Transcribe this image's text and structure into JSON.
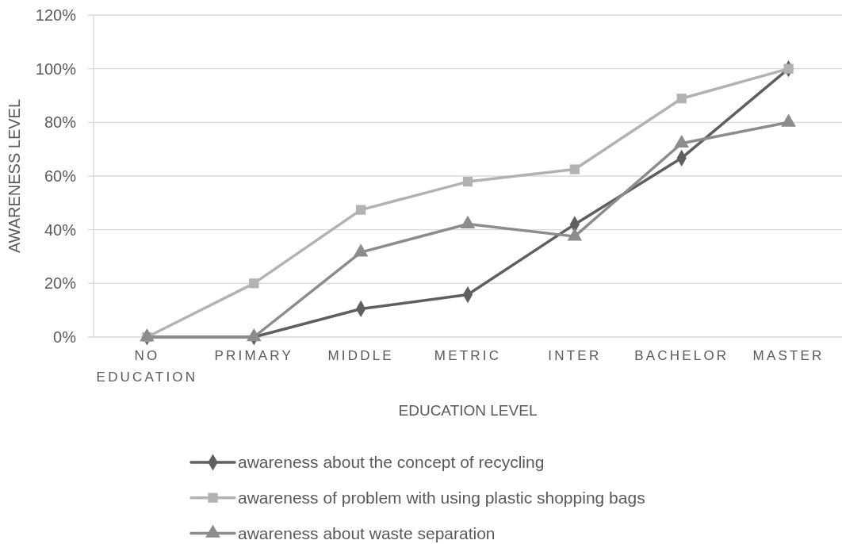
{
  "chart_data": {
    "type": "line",
    "xlabel": "EDUCATION LEVEL",
    "ylabel": "AWARENESS LEVEL",
    "categories": [
      "NO EDUCATION",
      "PRIMARY",
      "MIDDLE",
      "METRIC",
      "INTER",
      "BACHELOR",
      "MASTER"
    ],
    "series": [
      {
        "name": "awareness about the concept of recycling",
        "color": "#5f5f5f",
        "marker": "diamond",
        "values": [
          0,
          0,
          10.5,
          15.8,
          42,
          66.7,
          100
        ]
      },
      {
        "name": "awareness of problem with using plastic shopping bags",
        "color": "#b2b2b2",
        "marker": "square",
        "values": [
          0,
          20,
          47.4,
          57.9,
          62.5,
          88.9,
          100
        ]
      },
      {
        "name": "awareness about waste separation",
        "color": "#8c8c8c",
        "marker": "triangle",
        "values": [
          0,
          0,
          31.6,
          42.1,
          37.5,
          72.2,
          80
        ]
      }
    ],
    "ylim": [
      0,
      120
    ],
    "yticks": [
      {
        "value": 0,
        "label": "0%"
      },
      {
        "value": 20,
        "label": "20%"
      },
      {
        "value": 40,
        "label": "40%"
      },
      {
        "value": 60,
        "label": "60%"
      },
      {
        "value": 80,
        "label": "80%"
      },
      {
        "value": 100,
        "label": "100%"
      },
      {
        "value": 120,
        "label": "120%"
      }
    ],
    "grid": "y",
    "legend": "bottom",
    "line_style": "solid"
  }
}
